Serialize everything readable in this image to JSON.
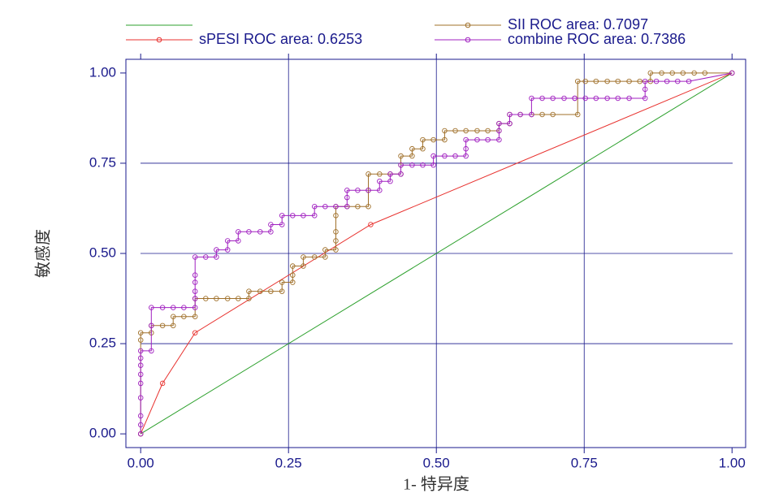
{
  "chart_data": {
    "type": "line",
    "x_label": "1- 特异度",
    "y_label": "敏感度",
    "xlim": [
      -0.025,
      1.023
    ],
    "ylim": [
      -0.038,
      1.038
    ],
    "xticks": [
      {
        "value": 0,
        "label": "0.00"
      },
      {
        "value": 0.25,
        "label": "0.25"
      },
      {
        "value": 0.5,
        "label": "0.50"
      },
      {
        "value": 0.75,
        "label": "0.75"
      },
      {
        "value": 1,
        "label": "1.00"
      }
    ],
    "yticks": [
      {
        "value": 0,
        "label": "0.00"
      },
      {
        "value": 0.25,
        "label": "0.25"
      },
      {
        "value": 0.5,
        "label": "0.50"
      },
      {
        "value": 0.75,
        "label": "0.75"
      },
      {
        "value": 1,
        "label": "1.00"
      }
    ],
    "grid": true,
    "legend": "top",
    "series": [
      {
        "color": "#2ca02c",
        "x": [
          0,
          1
        ],
        "y": [
          0,
          1
        ]
      },
      {
        "name": "sPESI ROC area: 0.6253",
        "color": "#e8322f",
        "marker": "circle",
        "x": [
          0,
          0.037,
          0.092,
          0.389,
          1
        ],
        "y": [
          0,
          0.14,
          0.28,
          0.58,
          1
        ]
      },
      {
        "name": "SII ROC area: 0.7097",
        "color": "#a0702a",
        "marker": "circle",
        "x": [
          0,
          0,
          0,
          0.018,
          0.018,
          0.037,
          0.055,
          0.055,
          0.073,
          0.092,
          0.092,
          0.11,
          0.128,
          0.147,
          0.165,
          0.183,
          0.183,
          0.202,
          0.22,
          0.239,
          0.239,
          0.257,
          0.257,
          0.257,
          0.275,
          0.275,
          0.294,
          0.312,
          0.312,
          0.33,
          0.33,
          0.33,
          0.33,
          0.33,
          0.349,
          0.367,
          0.385,
          0.385,
          0.385,
          0.404,
          0.422,
          0.44,
          0.44,
          0.44,
          0.459,
          0.459,
          0.477,
          0.477,
          0.495,
          0.514,
          0.514,
          0.532,
          0.55,
          0.569,
          0.587,
          0.606,
          0.606,
          0.624,
          0.624,
          0.642,
          0.661,
          0.679,
          0.697,
          0.739,
          0.739,
          0.752,
          0.77,
          0.789,
          0.807,
          0.826,
          0.844,
          0.862,
          0.862,
          0.881,
          0.899,
          0.917,
          0.936,
          0.954,
          1
        ],
        "y": [
          0,
          0.26,
          0.28,
          0.28,
          0.3,
          0.3,
          0.3,
          0.325,
          0.325,
          0.325,
          0.375,
          0.375,
          0.375,
          0.375,
          0.375,
          0.375,
          0.395,
          0.395,
          0.395,
          0.395,
          0.42,
          0.42,
          0.44,
          0.465,
          0.465,
          0.49,
          0.49,
          0.49,
          0.51,
          0.51,
          0.535,
          0.56,
          0.605,
          0.63,
          0.63,
          0.63,
          0.63,
          0.675,
          0.72,
          0.72,
          0.72,
          0.72,
          0.745,
          0.77,
          0.77,
          0.79,
          0.79,
          0.815,
          0.815,
          0.815,
          0.84,
          0.84,
          0.84,
          0.84,
          0.84,
          0.84,
          0.86,
          0.86,
          0.885,
          0.885,
          0.885,
          0.885,
          0.885,
          0.885,
          0.977,
          0.977,
          0.977,
          0.977,
          0.977,
          0.977,
          0.977,
          0.977,
          1,
          1,
          1,
          1,
          1,
          1,
          1
        ]
      },
      {
        "name": "combine ROC area: 0.7386",
        "color": "#a020c0",
        "marker": "circle",
        "x": [
          0,
          0,
          0,
          0,
          0,
          0,
          0,
          0,
          0,
          0.018,
          0.018,
          0.018,
          0.037,
          0.055,
          0.073,
          0.092,
          0.092,
          0.092,
          0.092,
          0.092,
          0.092,
          0.11,
          0.128,
          0.128,
          0.147,
          0.147,
          0.165,
          0.165,
          0.183,
          0.202,
          0.22,
          0.22,
          0.239,
          0.239,
          0.257,
          0.275,
          0.294,
          0.294,
          0.312,
          0.33,
          0.349,
          0.349,
          0.349,
          0.367,
          0.385,
          0.404,
          0.404,
          0.422,
          0.422,
          0.44,
          0.44,
          0.459,
          0.477,
          0.495,
          0.495,
          0.514,
          0.532,
          0.55,
          0.55,
          0.55,
          0.569,
          0.587,
          0.606,
          0.606,
          0.606,
          0.624,
          0.624,
          0.642,
          0.661,
          0.661,
          0.679,
          0.697,
          0.716,
          0.734,
          0.734,
          0.752,
          0.77,
          0.789,
          0.807,
          0.826,
          0.853,
          0.853,
          0.853,
          0.872,
          0.89,
          0.908,
          0.927,
          1
        ],
        "y": [
          0,
          0.025,
          0.05,
          0.1,
          0.14,
          0.165,
          0.19,
          0.21,
          0.23,
          0.23,
          0.3,
          0.35,
          0.35,
          0.35,
          0.35,
          0.35,
          0.375,
          0.395,
          0.42,
          0.44,
          0.49,
          0.49,
          0.49,
          0.51,
          0.51,
          0.535,
          0.535,
          0.56,
          0.56,
          0.56,
          0.56,
          0.58,
          0.58,
          0.605,
          0.605,
          0.605,
          0.605,
          0.63,
          0.63,
          0.63,
          0.63,
          0.655,
          0.675,
          0.675,
          0.675,
          0.675,
          0.7,
          0.7,
          0.72,
          0.72,
          0.745,
          0.745,
          0.745,
          0.745,
          0.77,
          0.77,
          0.77,
          0.77,
          0.79,
          0.815,
          0.815,
          0.815,
          0.815,
          0.84,
          0.86,
          0.86,
          0.885,
          0.885,
          0.885,
          0.93,
          0.93,
          0.93,
          0.93,
          0.93,
          0.93,
          0.93,
          0.93,
          0.93,
          0.93,
          0.93,
          0.93,
          0.955,
          0.977,
          0.977,
          0.977,
          0.977,
          0.977,
          1
        ]
      }
    ]
  }
}
